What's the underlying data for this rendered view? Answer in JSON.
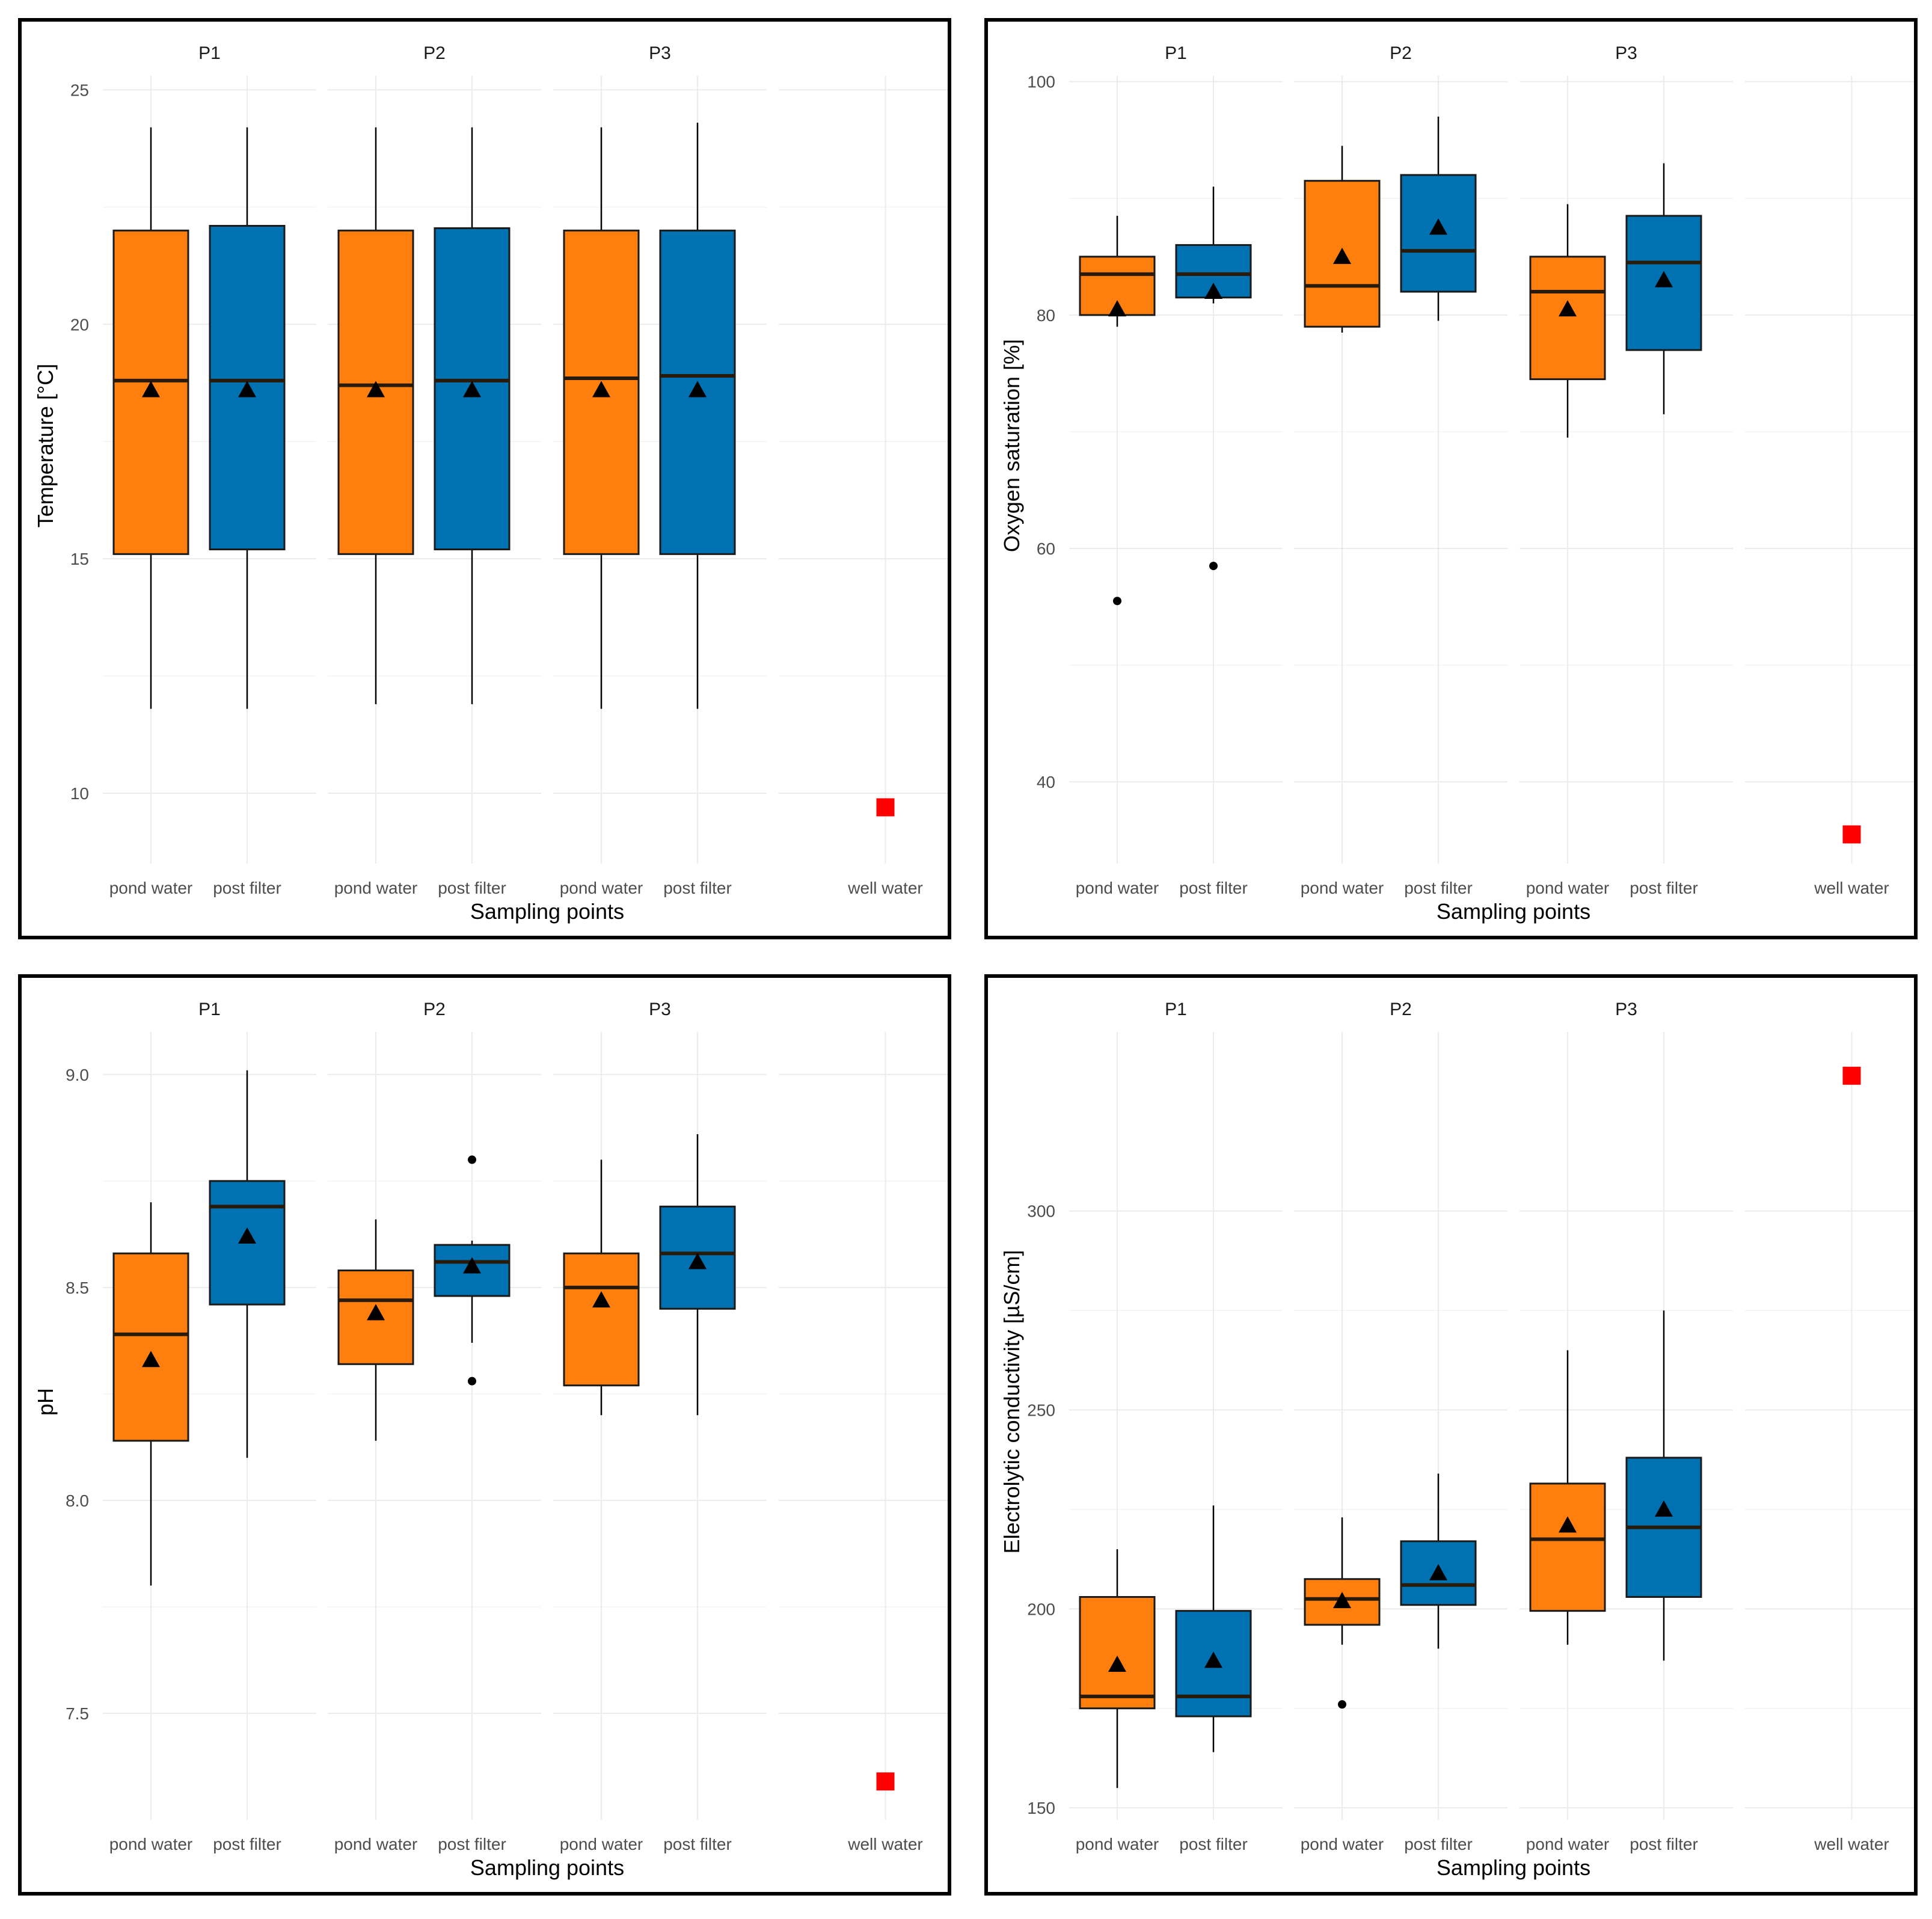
{
  "colors": {
    "pond_water": "#ff7f0e",
    "post_filter": "#0072b2",
    "well_water": "#ff0000",
    "grid": "#ebebeb",
    "line": "#000000"
  },
  "chart_data": [
    {
      "type": "boxplot",
      "title": "",
      "xlabel": "Sampling points",
      "ylabel": "Temperature [°C]",
      "ylim": [
        8.5,
        25.3
      ],
      "yticks": [
        10,
        15,
        20,
        25
      ],
      "ytick_labels": [
        "10",
        "15",
        "20",
        "25"
      ],
      "facets": [
        "P1",
        "P2",
        "P3"
      ],
      "categories": [
        "pond water",
        "post filter"
      ],
      "boxes": [
        {
          "facet": "P1",
          "category": "pond water",
          "min": 11.8,
          "q1": 15.1,
          "median": 18.8,
          "q3": 22.0,
          "max": 24.2,
          "mean": 18.6,
          "outliers": []
        },
        {
          "facet": "P1",
          "category": "post filter",
          "min": 11.8,
          "q1": 15.2,
          "median": 18.8,
          "q3": 22.1,
          "max": 24.2,
          "mean": 18.6,
          "outliers": []
        },
        {
          "facet": "P2",
          "category": "pond water",
          "min": 11.9,
          "q1": 15.1,
          "median": 18.7,
          "q3": 22.0,
          "max": 24.2,
          "mean": 18.6,
          "outliers": []
        },
        {
          "facet": "P2",
          "category": "post filter",
          "min": 11.9,
          "q1": 15.2,
          "median": 18.8,
          "q3": 22.05,
          "max": 24.2,
          "mean": 18.6,
          "outliers": []
        },
        {
          "facet": "P3",
          "category": "pond water",
          "min": 11.8,
          "q1": 15.1,
          "median": 18.85,
          "q3": 22.0,
          "max": 24.2,
          "mean": 18.6,
          "outliers": []
        },
        {
          "facet": "P3",
          "category": "post filter",
          "min": 11.8,
          "q1": 15.1,
          "median": 18.9,
          "q3": 22.0,
          "max": 24.3,
          "mean": 18.6,
          "outliers": []
        }
      ],
      "reference": {
        "category": "well water",
        "value": 9.7
      }
    },
    {
      "type": "boxplot",
      "title": "",
      "xlabel": "Sampling points",
      "ylabel": "Oxygen saturation [%]",
      "ylim": [
        33,
        100.5
      ],
      "yticks": [
        40,
        60,
        80,
        100
      ],
      "ytick_labels": [
        "40",
        "60",
        "80",
        "100"
      ],
      "facets": [
        "P1",
        "P2",
        "P3"
      ],
      "categories": [
        "pond water",
        "post filter"
      ],
      "boxes": [
        {
          "facet": "P1",
          "category": "pond water",
          "min": 79.0,
          "q1": 80.0,
          "median": 83.5,
          "q3": 85.0,
          "max": 88.5,
          "mean": 80.5,
          "outliers": [
            55.5
          ]
        },
        {
          "facet": "P1",
          "category": "post filter",
          "min": 81.0,
          "q1": 81.5,
          "median": 83.5,
          "q3": 86.0,
          "max": 91.0,
          "mean": 82.0,
          "outliers": [
            58.5
          ]
        },
        {
          "facet": "P2",
          "category": "pond water",
          "min": 78.5,
          "q1": 79.0,
          "median": 82.5,
          "q3": 91.5,
          "max": 94.5,
          "mean": 85.0,
          "outliers": []
        },
        {
          "facet": "P2",
          "category": "post filter",
          "min": 79.5,
          "q1": 82.0,
          "median": 85.5,
          "q3": 92.0,
          "max": 97.0,
          "mean": 87.5,
          "outliers": []
        },
        {
          "facet": "P3",
          "category": "pond water",
          "min": 69.5,
          "q1": 74.5,
          "median": 82.0,
          "q3": 85.0,
          "max": 89.5,
          "mean": 80.5,
          "outliers": []
        },
        {
          "facet": "P3",
          "category": "post filter",
          "min": 71.5,
          "q1": 77.0,
          "median": 84.5,
          "q3": 88.5,
          "max": 93.0,
          "mean": 83.0,
          "outliers": []
        }
      ],
      "reference": {
        "category": "well water",
        "value": 35.5
      }
    },
    {
      "type": "boxplot",
      "title": "",
      "xlabel": "Sampling points",
      "ylabel": "pH",
      "ylim": [
        7.25,
        9.1
      ],
      "yticks": [
        7.5,
        8.0,
        8.5,
        9.0
      ],
      "ytick_labels": [
        "7.5",
        "8.0",
        "8.5",
        "9.0"
      ],
      "facets": [
        "P1",
        "P2",
        "P3"
      ],
      "categories": [
        "pond water",
        "post filter"
      ],
      "boxes": [
        {
          "facet": "P1",
          "category": "pond water",
          "min": 7.8,
          "q1": 8.14,
          "median": 8.39,
          "q3": 8.58,
          "max": 8.7,
          "mean": 8.33,
          "outliers": []
        },
        {
          "facet": "P1",
          "category": "post filter",
          "min": 8.1,
          "q1": 8.46,
          "median": 8.69,
          "q3": 8.75,
          "max": 9.01,
          "mean": 8.62,
          "outliers": []
        },
        {
          "facet": "P2",
          "category": "pond water",
          "min": 8.14,
          "q1": 8.32,
          "median": 8.47,
          "q3": 8.54,
          "max": 8.66,
          "mean": 8.44,
          "outliers": []
        },
        {
          "facet": "P2",
          "category": "post filter",
          "min": 8.37,
          "q1": 8.48,
          "median": 8.56,
          "q3": 8.6,
          "max": 8.61,
          "mean": 8.55,
          "outliers": [
            8.8,
            8.28
          ]
        },
        {
          "facet": "P3",
          "category": "pond water",
          "min": 8.2,
          "q1": 8.27,
          "median": 8.5,
          "q3": 8.58,
          "max": 8.8,
          "mean": 8.47,
          "outliers": []
        },
        {
          "facet": "P3",
          "category": "post filter",
          "min": 8.2,
          "q1": 8.45,
          "median": 8.58,
          "q3": 8.69,
          "max": 8.86,
          "mean": 8.56,
          "outliers": []
        }
      ],
      "reference": {
        "category": "well water",
        "value": 7.34
      }
    },
    {
      "type": "boxplot",
      "title": "",
      "xlabel": "Sampling points",
      "ylabel": "Electrolytic conductivity [µS/cm]",
      "ylim": [
        147,
        345
      ],
      "yticks": [
        150,
        200,
        250,
        300
      ],
      "ytick_labels": [
        "150",
        "200",
        "250",
        "300"
      ],
      "facets": [
        "P1",
        "P2",
        "P3"
      ],
      "categories": [
        "pond water",
        "post filter"
      ],
      "boxes": [
        {
          "facet": "P1",
          "category": "pond water",
          "min": 155,
          "q1": 175,
          "median": 178,
          "q3": 203,
          "max": 215,
          "mean": 186,
          "outliers": []
        },
        {
          "facet": "P1",
          "category": "post filter",
          "min": 164,
          "q1": 173,
          "median": 178,
          "q3": 199.5,
          "max": 226,
          "mean": 187,
          "outliers": []
        },
        {
          "facet": "P2",
          "category": "pond water",
          "min": 191,
          "q1": 196,
          "median": 202.5,
          "q3": 207.5,
          "max": 223,
          "mean": 202,
          "outliers": [
            176
          ]
        },
        {
          "facet": "P2",
          "category": "post filter",
          "min": 190,
          "q1": 201,
          "median": 206,
          "q3": 217,
          "max": 234,
          "mean": 209,
          "outliers": []
        },
        {
          "facet": "P3",
          "category": "pond water",
          "min": 191,
          "q1": 199.5,
          "median": 217.5,
          "q3": 231.5,
          "max": 265,
          "mean": 221,
          "outliers": []
        },
        {
          "facet": "P3",
          "category": "post filter",
          "min": 187,
          "q1": 203,
          "median": 220.5,
          "q3": 238,
          "max": 275,
          "mean": 225,
          "outliers": []
        }
      ],
      "reference": {
        "category": "well water",
        "value": 334
      }
    }
  ]
}
